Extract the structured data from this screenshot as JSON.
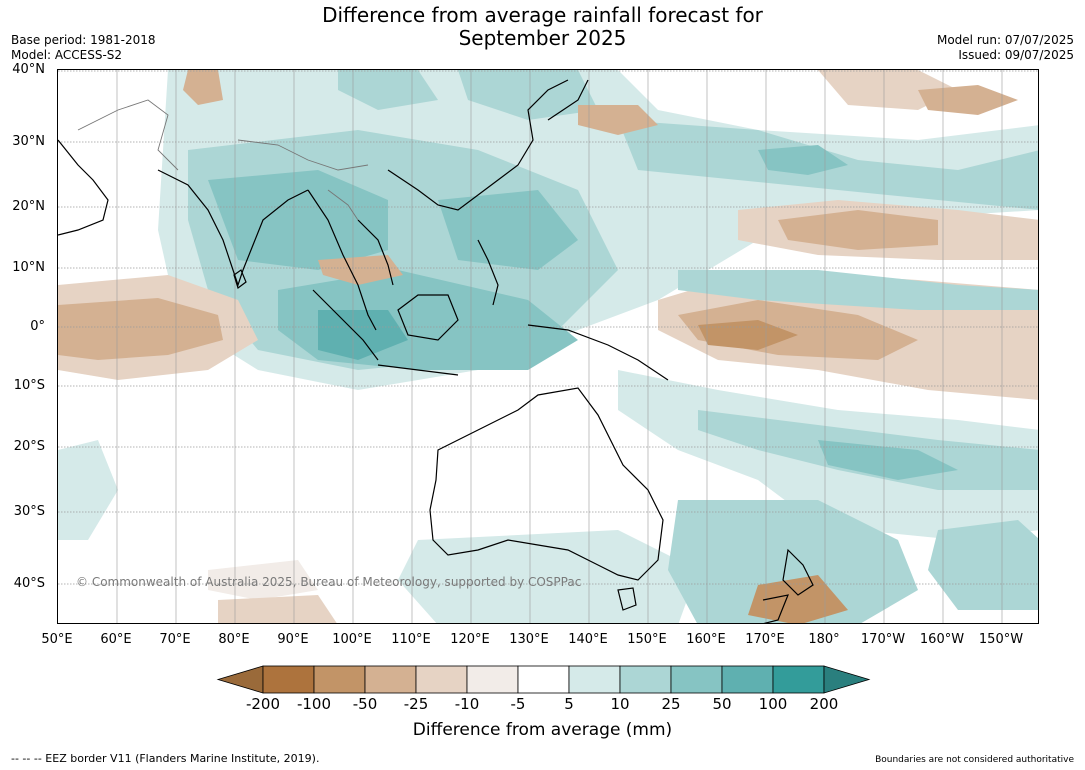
{
  "title_line1": "Difference from average rainfall forecast for",
  "title_line2": "September 2025",
  "base_period": "Base period: 1981-2018",
  "model": "Model: ACCESS-S2",
  "model_run": "Model run: 07/07/2025",
  "issued": "Issued: 09/07/2025",
  "lat_labels": [
    "40°N",
    "30°N",
    "20°N",
    "10°N",
    "0°",
    "10°S",
    "20°S",
    "30°S",
    "40°S"
  ],
  "lon_labels": [
    "50°E",
    "60°E",
    "70°E",
    "80°E",
    "90°E",
    "100°E",
    "110°E",
    "120°E",
    "130°E",
    "140°E",
    "150°E",
    "160°E",
    "170°E",
    "180°",
    "170°W",
    "160°W",
    "150°W"
  ],
  "copyright": "© Commonwealth of Australia 2025, Bureau of Meteorology, supported by COSPPac",
  "colorbar": {
    "labels": [
      "-200",
      "-100",
      "-50",
      "-25",
      "-10",
      "-5",
      "5",
      "10",
      "25",
      "50",
      "100",
      "200"
    ],
    "colors": [
      "#9a6a3a",
      "#ad733d",
      "#c29467",
      "#d4b192",
      "#e6d3c4",
      "#f2ece8",
      "#ffffff",
      "#d5eae9",
      "#acd6d5",
      "#86c4c3",
      "#5fb0b0",
      "#339c9a",
      "#2a7f7e"
    ],
    "title": "Difference from average (mm)"
  },
  "eez_note": "--  --  -- EEZ border V11 (Flanders Marine Institute, 2019).",
  "boundaries_note": "Boundaries are not considered authoritative"
}
